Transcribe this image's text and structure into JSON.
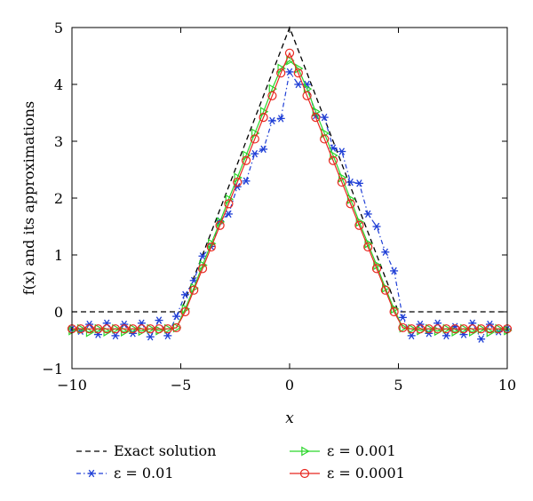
{
  "chart_data": {
    "type": "line",
    "title": "",
    "xlabel": "x",
    "ylabel": "f(x) and its approximations",
    "xlim": [
      -10,
      10
    ],
    "ylim": [
      -1,
      5
    ],
    "xticks": [
      -10,
      -5,
      0,
      5,
      10
    ],
    "yticks": [
      -1,
      0,
      1,
      2,
      3,
      4,
      5
    ],
    "xtick_labels": [
      "−10",
      "−5",
      "0",
      "5",
      "10"
    ],
    "ytick_labels": [
      "−1",
      "0",
      "1",
      "2",
      "3",
      "4",
      "5"
    ],
    "grid": false,
    "legend_position": "below",
    "series": [
      {
        "name": "Exact solution",
        "color": "#000000",
        "style": "dashed",
        "marker": "none",
        "x": [
          -10,
          -5,
          0,
          5,
          10
        ],
        "y": [
          0,
          0,
          5,
          0,
          0
        ]
      },
      {
        "name": "ε = 0.01",
        "color": "#1f3fd6",
        "style": "dashdot",
        "marker": "asterisk",
        "x": [
          -10,
          -9.6,
          -9.2,
          -8.8,
          -8.4,
          -8.0,
          -7.6,
          -7.2,
          -6.8,
          -6.4,
          -6.0,
          -5.6,
          -5.2,
          -4.8,
          -4.4,
          -4.0,
          -3.6,
          -3.2,
          -2.8,
          -2.4,
          -2.0,
          -1.6,
          -1.2,
          -0.8,
          -0.4,
          0.0,
          0.4,
          0.8,
          1.2,
          1.6,
          2.0,
          2.4,
          2.8,
          3.2,
          3.6,
          4.0,
          4.4,
          4.8,
          5.2,
          5.6,
          6.0,
          6.4,
          6.8,
          7.2,
          7.6,
          8.0,
          8.4,
          8.8,
          9.2,
          9.6,
          10.0
        ],
        "y": [
          -0.3,
          -0.34,
          -0.22,
          -0.4,
          -0.2,
          -0.42,
          -0.22,
          -0.38,
          -0.2,
          -0.44,
          -0.15,
          -0.42,
          -0.08,
          0.3,
          0.55,
          0.98,
          1.15,
          1.6,
          1.72,
          2.2,
          2.3,
          2.78,
          2.86,
          3.36,
          3.4,
          4.22,
          4.0,
          4.0,
          3.45,
          3.42,
          2.88,
          2.82,
          2.28,
          2.26,
          1.72,
          1.5,
          1.05,
          0.72,
          -0.1,
          -0.42,
          -0.22,
          -0.38,
          -0.2,
          -0.42,
          -0.26,
          -0.4,
          -0.2,
          -0.48,
          -0.22,
          -0.35,
          -0.3
        ]
      },
      {
        "name": "ε = 0.001",
        "color": "#2bd62b",
        "style": "solid",
        "marker": "triangle-right",
        "x": [
          -10,
          -9.6,
          -9.2,
          -8.8,
          -8.4,
          -8.0,
          -7.6,
          -7.2,
          -6.8,
          -6.4,
          -6.0,
          -5.6,
          -5.2,
          -4.8,
          -4.4,
          -4.0,
          -3.6,
          -3.2,
          -2.8,
          -2.4,
          -2.0,
          -1.6,
          -1.2,
          -0.8,
          -0.4,
          0.0,
          0.4,
          0.8,
          1.2,
          1.6,
          2.0,
          2.4,
          2.8,
          3.2,
          3.6,
          4.0,
          4.4,
          4.8,
          5.2,
          5.6,
          6.0,
          6.4,
          6.8,
          7.2,
          7.6,
          8.0,
          8.4,
          8.8,
          9.2,
          9.6,
          10.0
        ],
        "y": [
          -0.33,
          -0.3,
          -0.36,
          -0.3,
          -0.35,
          -0.3,
          -0.35,
          -0.3,
          -0.34,
          -0.3,
          -0.33,
          -0.3,
          -0.28,
          0.05,
          0.42,
          0.82,
          1.2,
          1.58,
          1.98,
          2.36,
          2.75,
          3.14,
          3.52,
          3.92,
          4.28,
          4.42,
          4.28,
          3.92,
          3.52,
          3.14,
          2.75,
          2.36,
          1.98,
          1.58,
          1.2,
          0.82,
          0.42,
          0.05,
          -0.28,
          -0.3,
          -0.33,
          -0.3,
          -0.34,
          -0.3,
          -0.35,
          -0.3,
          -0.35,
          -0.3,
          -0.36,
          -0.3,
          -0.33
        ]
      },
      {
        "name": "ε = 0.0001",
        "color": "#e8261e",
        "style": "solid",
        "marker": "circle",
        "x": [
          -10,
          -9.6,
          -9.2,
          -8.8,
          -8.4,
          -8.0,
          -7.6,
          -7.2,
          -6.8,
          -6.4,
          -6.0,
          -5.6,
          -5.2,
          -4.8,
          -4.4,
          -4.0,
          -3.6,
          -3.2,
          -2.8,
          -2.4,
          -2.0,
          -1.6,
          -1.2,
          -0.8,
          -0.4,
          0.0,
          0.4,
          0.8,
          1.2,
          1.6,
          2.0,
          2.4,
          2.8,
          3.2,
          3.6,
          4.0,
          4.4,
          4.8,
          5.2,
          5.6,
          6.0,
          6.4,
          6.8,
          7.2,
          7.6,
          8.0,
          8.4,
          8.8,
          9.2,
          9.6,
          10.0
        ],
        "y": [
          -0.3,
          -0.3,
          -0.3,
          -0.3,
          -0.3,
          -0.3,
          -0.3,
          -0.3,
          -0.3,
          -0.3,
          -0.3,
          -0.3,
          -0.28,
          0.0,
          0.38,
          0.76,
          1.14,
          1.52,
          1.9,
          2.28,
          2.66,
          3.04,
          3.42,
          3.8,
          4.2,
          4.55,
          4.2,
          3.8,
          3.42,
          3.04,
          2.66,
          2.28,
          1.9,
          1.52,
          1.14,
          0.76,
          0.38,
          0.0,
          -0.28,
          -0.3,
          -0.3,
          -0.3,
          -0.3,
          -0.3,
          -0.3,
          -0.3,
          -0.3,
          -0.3,
          -0.3,
          -0.3,
          -0.3
        ]
      }
    ]
  }
}
